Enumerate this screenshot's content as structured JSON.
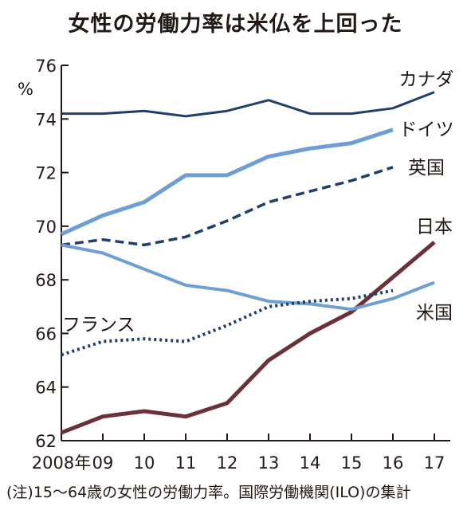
{
  "title": "女性の労働力率は米仏を上回った",
  "note": "(注)15〜64歳の女性の労働力率。国際労働機関(ILO)の集計",
  "chart_data": {
    "type": "line",
    "title": "女性の労働力率は米仏を上回った",
    "ylabel": "%",
    "ylim": [
      62,
      76
    ],
    "yticks": [
      62,
      64,
      66,
      68,
      70,
      72,
      74,
      76
    ],
    "grid": false,
    "categories": [
      "2008",
      "2009",
      "2010",
      "2011",
      "2012",
      "2013",
      "2014",
      "2015",
      "2016",
      "2017"
    ],
    "xtick_labels": [
      "2008年",
      "09",
      "10",
      "11",
      "12",
      "13",
      "14",
      "15",
      "16",
      "17"
    ],
    "series": [
      {
        "name": "カナダ",
        "color": "#1f3f6b",
        "style": "solid",
        "width": 3,
        "values": [
          74.2,
          74.2,
          74.3,
          74.1,
          74.3,
          74.7,
          74.2,
          74.2,
          74.4,
          75.0
        ]
      },
      {
        "name": "ドイツ",
        "color": "#6d9fd6",
        "style": "solid",
        "width": 5,
        "values": [
          69.7,
          70.4,
          70.9,
          71.9,
          71.9,
          72.6,
          72.9,
          73.1,
          73.6,
          null
        ]
      },
      {
        "name": "英国",
        "color": "#1f3f6b",
        "style": "dashed",
        "width": 3.5,
        "values": [
          69.3,
          69.5,
          69.3,
          69.6,
          70.2,
          70.9,
          71.3,
          71.7,
          72.2,
          null
        ]
      },
      {
        "name": "日本",
        "color": "#6b3138",
        "style": "solid",
        "width": 5,
        "values": [
          62.3,
          62.9,
          63.1,
          62.9,
          63.4,
          65.0,
          66.0,
          66.8,
          68.1,
          69.4
        ]
      },
      {
        "name": "米国",
        "color": "#6d9fd6",
        "style": "solid",
        "width": 4,
        "values": [
          69.3,
          69.0,
          68.4,
          67.8,
          67.6,
          67.2,
          67.1,
          66.9,
          67.3,
          67.9
        ]
      },
      {
        "name": "フランス",
        "color": "#1f3f6b",
        "style": "dotted",
        "width": 4,
        "values": [
          65.2,
          65.7,
          65.8,
          65.7,
          66.3,
          67.0,
          67.2,
          67.3,
          67.6,
          null
        ]
      }
    ]
  }
}
